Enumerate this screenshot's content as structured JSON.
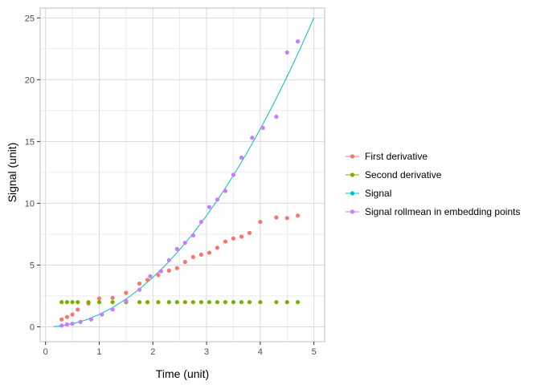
{
  "chart_data": {
    "type": "scatter",
    "xlabel": "Time (unit)",
    "ylabel": "Signal (unit)",
    "xlim": [
      -0.1,
      5.2
    ],
    "ylim": [
      -1.2,
      25.8
    ],
    "x_ticks": [
      0,
      1,
      2,
      3,
      4,
      5
    ],
    "y_ticks": [
      0,
      5,
      10,
      15,
      20,
      25
    ],
    "grid": true,
    "legend_position": "right",
    "series": [
      {
        "name": "First derivative",
        "kind": "points",
        "color": "#F8766D",
        "x": [
          0.3,
          0.4,
          0.5,
          0.6,
          0.8,
          1.0,
          1.25,
          1.5,
          1.75,
          1.9,
          2.1,
          2.3,
          2.45,
          2.6,
          2.75,
          2.9,
          3.05,
          3.2,
          3.35,
          3.5,
          3.65,
          3.8,
          4.0,
          4.3,
          4.5,
          4.7
        ],
        "y": [
          0.6,
          0.8,
          1.0,
          1.4,
          1.9,
          2.3,
          2.35,
          2.75,
          3.5,
          3.8,
          4.2,
          4.55,
          4.75,
          5.25,
          5.65,
          5.85,
          6.0,
          6.4,
          6.9,
          7.15,
          7.3,
          7.6,
          8.5,
          8.85,
          8.8,
          9.0
        ]
      },
      {
        "name": "Second derivative",
        "kind": "points",
        "color": "#7CAE00",
        "x": [
          0.3,
          0.4,
          0.5,
          0.6,
          0.8,
          1.0,
          1.25,
          1.5,
          1.75,
          1.9,
          2.1,
          2.3,
          2.45,
          2.6,
          2.75,
          2.9,
          3.05,
          3.2,
          3.35,
          3.5,
          3.65,
          3.8,
          4.0,
          4.3,
          4.5,
          4.7
        ],
        "y": [
          2,
          2,
          2,
          2,
          2,
          2,
          2,
          2,
          2,
          2,
          2,
          2,
          2,
          2,
          2,
          2,
          2,
          2,
          2,
          2,
          2,
          2,
          2,
          2,
          2,
          2
        ]
      },
      {
        "name": "Signal",
        "kind": "line",
        "color": "#00BFC4",
        "x": [
          0.15,
          0.3,
          0.5,
          0.75,
          1.0,
          1.25,
          1.5,
          1.75,
          2.0,
          2.25,
          2.5,
          2.75,
          3.0,
          3.25,
          3.5,
          3.75,
          4.0,
          4.25,
          4.5,
          4.75,
          5.0
        ],
        "y": [
          0.02,
          0.09,
          0.25,
          0.56,
          1.0,
          1.56,
          2.25,
          3.06,
          4.0,
          5.06,
          6.25,
          7.56,
          9.0,
          10.56,
          12.25,
          14.06,
          16.0,
          18.06,
          20.25,
          22.56,
          25.0
        ]
      },
      {
        "name": "Signal rollmean in embedding points",
        "kind": "points",
        "color": "#C77CFF",
        "x": [
          0.3,
          0.4,
          0.5,
          0.65,
          0.85,
          1.05,
          1.25,
          1.5,
          1.75,
          1.95,
          2.15,
          2.3,
          2.45,
          2.6,
          2.75,
          2.9,
          3.05,
          3.2,
          3.35,
          3.5,
          3.65,
          3.85,
          4.05,
          4.3,
          4.5,
          4.7
        ],
        "y": [
          0.1,
          0.2,
          0.25,
          0.4,
          0.6,
          1.0,
          1.4,
          2.1,
          3.0,
          4.1,
          4.5,
          5.4,
          6.3,
          6.8,
          7.4,
          8.5,
          9.7,
          10.3,
          11.0,
          12.3,
          13.7,
          15.3,
          16.1,
          17.0,
          22.2,
          23.1
        ]
      }
    ]
  }
}
